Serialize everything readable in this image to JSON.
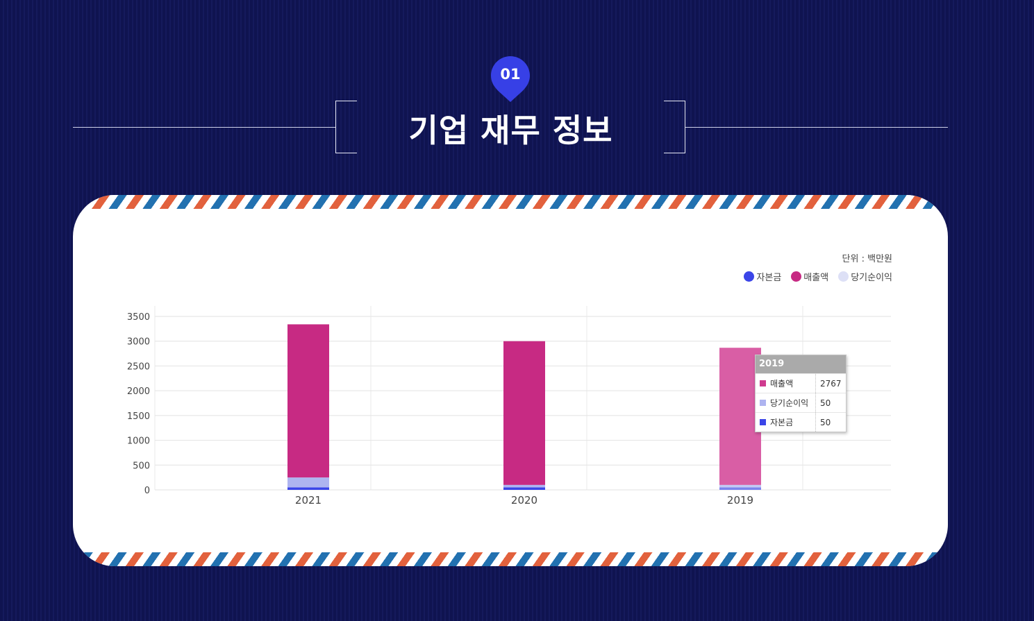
{
  "badge": {
    "number": "01"
  },
  "section_title": "기업 재무 정보",
  "unit_label": "단위 : 백만원",
  "legend": [
    {
      "label": "자본금",
      "color": "#3b45e8"
    },
    {
      "label": "매출액",
      "color": "#c72a83"
    },
    {
      "label": "당기순이익",
      "color": "#dde0f6"
    }
  ],
  "tooltip": {
    "title": "2019",
    "rows": [
      {
        "label": "매출액",
        "value": "2767",
        "color": "#cf3b8f"
      },
      {
        "label": "당기순이익",
        "value": "50",
        "color": "#aeb4f0"
      },
      {
        "label": "자본금",
        "value": "50",
        "color": "#3b45e8"
      }
    ]
  },
  "colors": {
    "background": "#0f1350",
    "badge": "#3740e6",
    "capital": "#3b45e8",
    "revenue": "#c72a83",
    "revenue_highlight": "#d95ea5",
    "net_income": "#aeb4f0"
  },
  "chart_data": {
    "type": "bar",
    "stacked": true,
    "categories": [
      "2021",
      "2020",
      "2019"
    ],
    "series": [
      {
        "name": "자본금",
        "values": [
          50,
          50,
          50
        ]
      },
      {
        "name": "당기순이익",
        "values": [
          200,
          50,
          50
        ]
      },
      {
        "name": "매출액",
        "values": [
          3090,
          2900,
          2767
        ]
      }
    ],
    "ylim": [
      0,
      3500
    ],
    "yticks": [
      0,
      500,
      1000,
      1500,
      2000,
      2500,
      3000,
      3500
    ],
    "grid": true,
    "legend_position": "top-right",
    "highlighted_category": "2019"
  }
}
